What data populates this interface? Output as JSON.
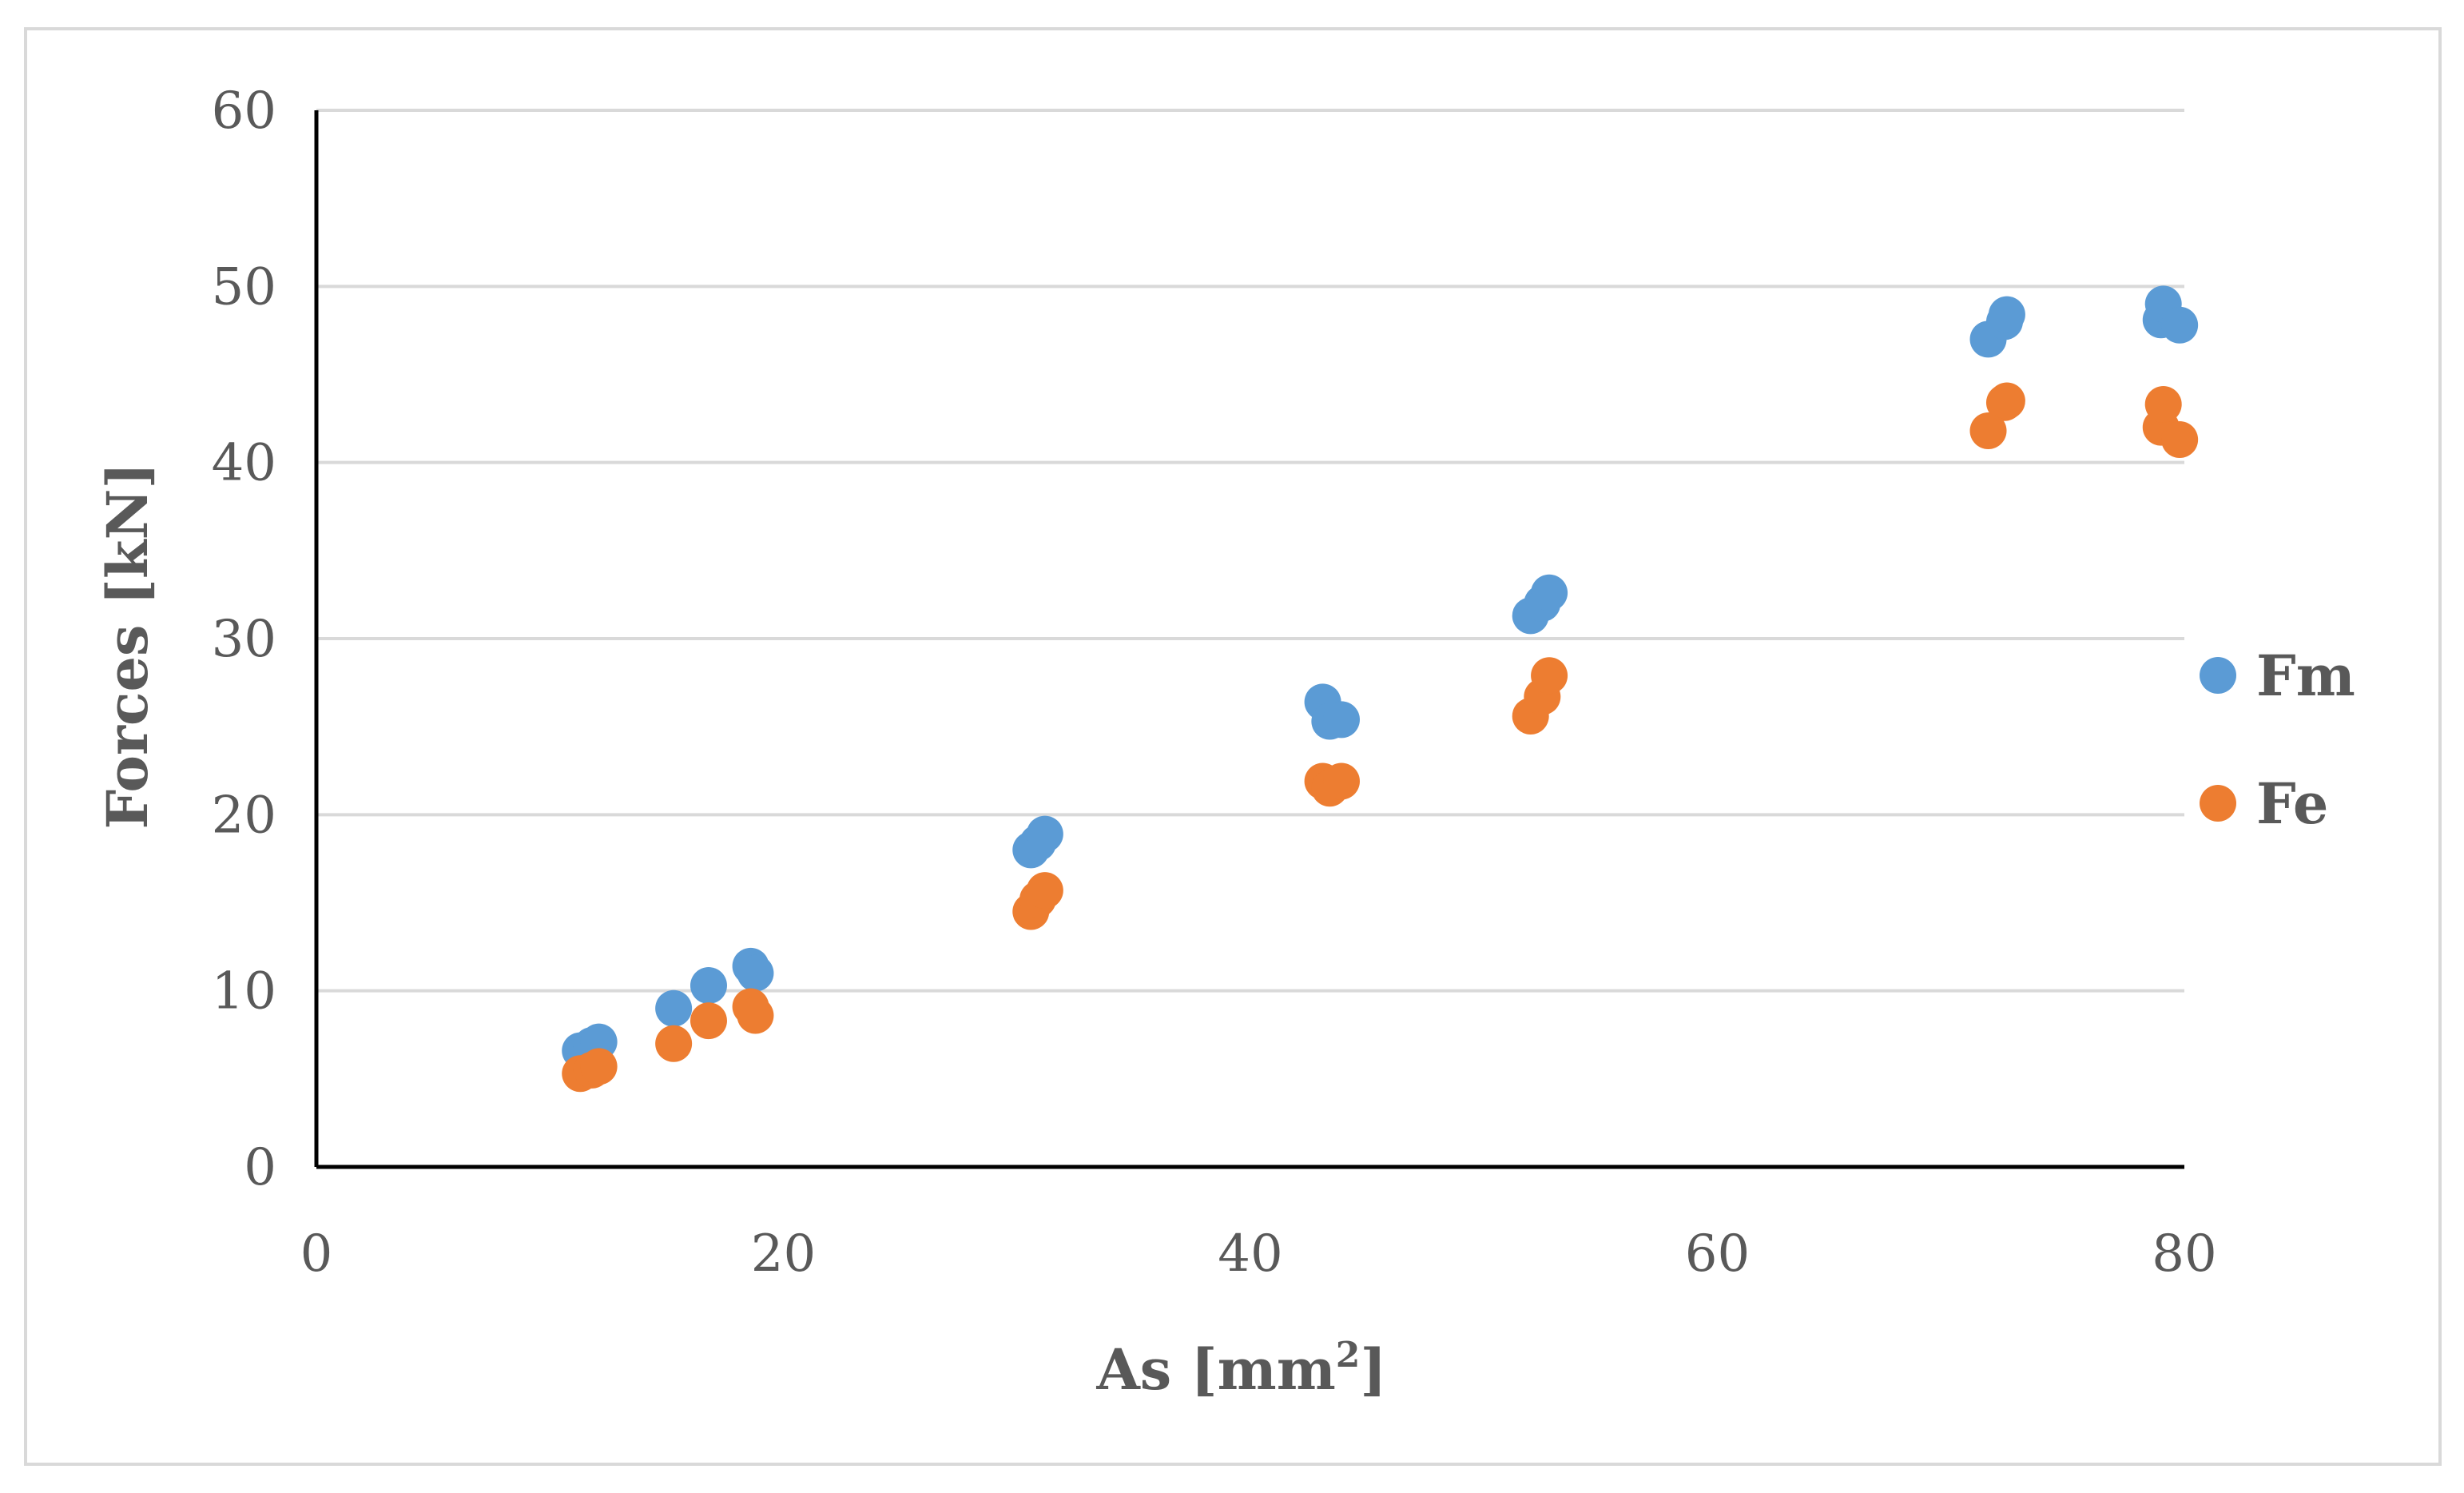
{
  "chart_data": {
    "type": "scatter",
    "title": "",
    "xlabel": "As [mm",
    "xlabel_superscript": "2",
    "xlabel_suffix": "]",
    "ylabel": "Forces [kN]",
    "xlim": [
      0,
      80
    ],
    "ylim": [
      0,
      60
    ],
    "xticks": [
      0,
      20,
      40,
      60,
      80
    ],
    "yticks": [
      0,
      10,
      20,
      30,
      40,
      50,
      60
    ],
    "grid": "horizontal",
    "legend_position": "right",
    "series": [
      {
        "name": "Fm",
        "color": "#5b9bd5",
        "points": [
          [
            11.3,
            6.6
          ],
          [
            11.8,
            6.9
          ],
          [
            12.1,
            7.1
          ],
          [
            15.3,
            9.0
          ],
          [
            16.8,
            10.3
          ],
          [
            18.6,
            11.4
          ],
          [
            18.8,
            11.0
          ],
          [
            30.6,
            18.0
          ],
          [
            30.9,
            18.4
          ],
          [
            31.2,
            18.9
          ],
          [
            43.1,
            26.4
          ],
          [
            43.4,
            25.3
          ],
          [
            43.9,
            25.4
          ],
          [
            52.0,
            31.3
          ],
          [
            52.5,
            32.0
          ],
          [
            52.8,
            32.6
          ],
          [
            71.6,
            47.0
          ],
          [
            72.3,
            48.0
          ],
          [
            72.4,
            48.4
          ],
          [
            79.0,
            48.1
          ],
          [
            79.1,
            49.0
          ],
          [
            79.8,
            47.8
          ]
        ]
      },
      {
        "name": "Fe",
        "color": "#ed7d31",
        "points": [
          [
            11.3,
            5.3
          ],
          [
            11.8,
            5.5
          ],
          [
            12.1,
            5.7
          ],
          [
            15.3,
            7.0
          ],
          [
            16.8,
            8.3
          ],
          [
            18.6,
            9.1
          ],
          [
            18.8,
            8.6
          ],
          [
            30.6,
            14.5
          ],
          [
            30.9,
            15.2
          ],
          [
            31.2,
            15.7
          ],
          [
            43.1,
            21.9
          ],
          [
            43.4,
            21.5
          ],
          [
            43.9,
            21.9
          ],
          [
            52.0,
            25.6
          ],
          [
            52.5,
            26.7
          ],
          [
            52.8,
            27.9
          ],
          [
            71.6,
            41.8
          ],
          [
            72.3,
            43.4
          ],
          [
            72.4,
            43.5
          ],
          [
            79.0,
            42.0
          ],
          [
            79.1,
            43.3
          ],
          [
            79.8,
            41.3
          ]
        ]
      }
    ]
  }
}
